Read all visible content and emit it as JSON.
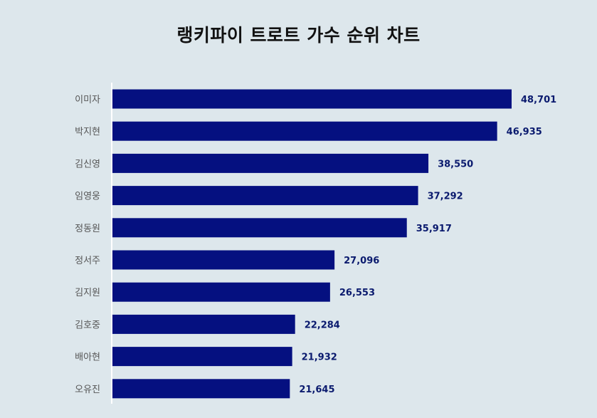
{
  "chart_title": "랭키파이 트로트 가수 순위 차트",
  "colors": {
    "background": "#dde7ec",
    "bar": "#051080",
    "value_label": "#0a1a6e",
    "axis": "#ffffff"
  },
  "chart_data": {
    "type": "bar",
    "orientation": "horizontal",
    "title": "랭키파이 트로트 가수 순위 차트",
    "categories": [
      "이미자",
      "박지현",
      "김신영",
      "임영웅",
      "정동원",
      "정서주",
      "김지원",
      "김호중",
      "배아현",
      "오유진"
    ],
    "values": [
      48701,
      46935,
      38550,
      37292,
      35917,
      27096,
      26553,
      22284,
      21932,
      21645
    ],
    "value_labels": [
      "48,701",
      "46,935",
      "38,550",
      "37,292",
      "35,917",
      "27,096",
      "26,553",
      "22,284",
      "21,932",
      "21,645"
    ],
    "xlim": [
      0,
      50000
    ],
    "grid": false,
    "legend": "none"
  }
}
